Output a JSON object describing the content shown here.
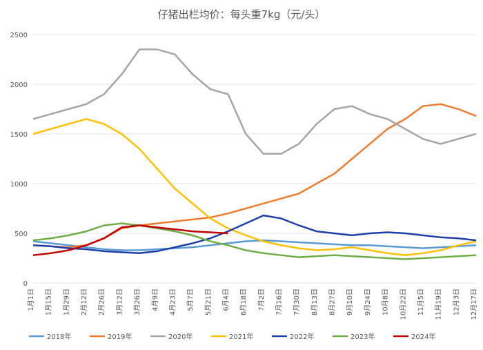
{
  "chart_data": {
    "type": "line",
    "title": "仔猪出栏均价：每头重7kg（元/头）",
    "categories": [
      "1月1日",
      "1月15日",
      "1月29日",
      "2月12日",
      "2月26日",
      "3月12日",
      "3月26日",
      "4月9日",
      "4月23日",
      "5月7日",
      "5月21日",
      "6月4日",
      "6月18日",
      "7月2日",
      "7月16日",
      "7月30日",
      "8月13日",
      "8月27日",
      "9月10日",
      "9月24日",
      "10月8日",
      "10月22日",
      "11月5日",
      "11月19日",
      "12月3日",
      "12月17日"
    ],
    "ylim": [
      0,
      2500
    ],
    "yticks": [
      0,
      500,
      1000,
      1500,
      2000,
      2500
    ],
    "grid": true,
    "legend": "bottom",
    "series": [
      {
        "name": "2018年",
        "color": "#5b9bd5",
        "values": [
          420,
          400,
          380,
          360,
          340,
          330,
          330,
          340,
          350,
          360,
          380,
          400,
          420,
          430,
          420,
          410,
          400,
          390,
          380,
          380,
          370,
          360,
          350,
          360,
          370,
          380
        ]
      },
      {
        "name": "2019年",
        "color": "#ed7d31",
        "values": [
          380,
          370,
          360,
          380,
          450,
          550,
          580,
          600,
          620,
          640,
          660,
          700,
          750,
          800,
          850,
          900,
          1000,
          1100,
          1250,
          1400,
          1550,
          1650,
          1780,
          1800,
          1750,
          1680
        ]
      },
      {
        "name": "2020年",
        "color": "#a5a5a5",
        "values": [
          1650,
          1700,
          1750,
          1800,
          1900,
          2100,
          2350,
          2350,
          2300,
          2100,
          1950,
          1900,
          1500,
          1300,
          1300,
          1400,
          1600,
          1750,
          1780,
          1700,
          1650,
          1550,
          1450,
          1400,
          1450,
          1500
        ]
      },
      {
        "name": "2021年",
        "color": "#ffc000",
        "values": [
          1500,
          1550,
          1600,
          1650,
          1600,
          1500,
          1350,
          1150,
          950,
          800,
          650,
          550,
          480,
          420,
          380,
          350,
          330,
          340,
          360,
          330,
          300,
          280,
          300,
          330,
          380,
          420
        ]
      },
      {
        "name": "2022年",
        "color": "#1f3fa8",
        "values": [
          380,
          370,
          350,
          340,
          320,
          310,
          300,
          320,
          360,
          400,
          450,
          520,
          600,
          680,
          650,
          580,
          520,
          500,
          480,
          500,
          510,
          500,
          480,
          460,
          450,
          430
        ]
      },
      {
        "name": "2023年",
        "color": "#70ad47",
        "values": [
          430,
          450,
          480,
          520,
          580,
          600,
          580,
          550,
          520,
          480,
          420,
          380,
          330,
          300,
          280,
          260,
          270,
          280,
          270,
          260,
          250,
          240,
          250,
          260,
          270,
          280
        ]
      },
      {
        "name": "2024年",
        "color": "#c00000",
        "values": [
          280,
          300,
          330,
          380,
          450,
          560,
          580,
          560,
          540,
          520,
          510,
          500,
          null,
          null,
          null,
          null,
          null,
          null,
          null,
          null,
          null,
          null,
          null,
          null,
          null,
          null
        ]
      }
    ]
  }
}
